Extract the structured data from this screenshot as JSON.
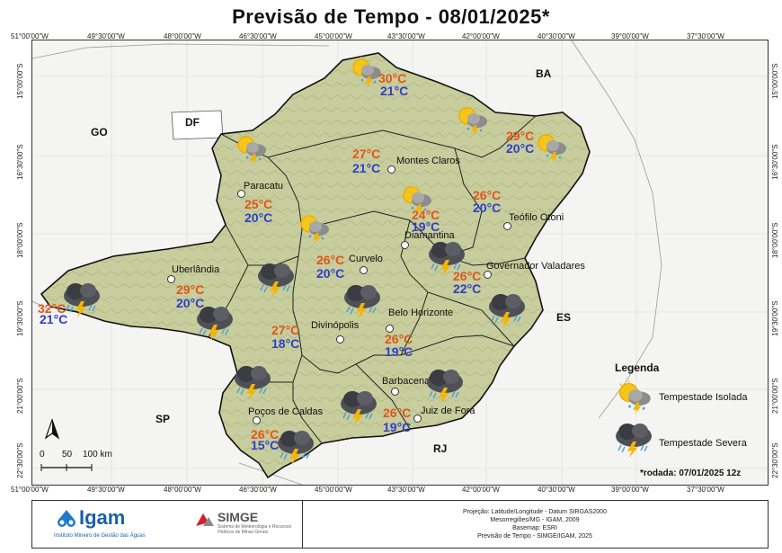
{
  "title": "Previsão de Tempo - 08/01/2025*",
  "coords_top": [
    "51°00'00\"W",
    "49°30'00\"W",
    "48°00'00\"W",
    "46°30'00\"W",
    "45°00'00\"W",
    "43°30'00\"W",
    "42°00'00\"W",
    "40°30'00\"W",
    "39°00'00\"W",
    "37°30'00\"W"
  ],
  "coords_side": [
    "15°00'00\"S",
    "16°30'00\"S",
    "18°00'00\"S",
    "19°30'00\"S",
    "21°00'00\"S",
    "22°30'00\"S"
  ],
  "states": [
    "GO",
    "DF",
    "BA",
    "ES",
    "SP",
    "RJ"
  ],
  "cities": [
    "Montes Claros",
    "Paracatu",
    "Teófilo Otoni",
    "Diamantina",
    "Uberlândia",
    "Curvelo",
    "Governador Valadares",
    "Divinópolis",
    "Belo Horizonte",
    "Barbacena",
    "Poços de Caldas",
    "Juiz de Fora"
  ],
  "forecasts": [
    {
      "max": "30°C",
      "min": "21°C",
      "icon": "tempestade-isolada"
    },
    {
      "max": "29°C",
      "min": "20°C",
      "icon": "tempestade-isolada"
    },
    {
      "max": "27°C",
      "min": "21°C",
      "icon": "tempestade-isolada"
    },
    {
      "max": "25°C",
      "min": "20°C",
      "icon": "tempestade-isolada"
    },
    {
      "max": "24°C",
      "min": "19°C",
      "icon": "tempestade-isolada"
    },
    {
      "max": "26°C",
      "min": "20°C",
      "icon": "tempestade-isolada"
    },
    {
      "max": "26°C",
      "min": "20°C",
      "icon": "tempestade-isolada"
    },
    {
      "max": "26°C",
      "min": "22°C",
      "icon": "tempestade-severa"
    },
    {
      "max": "29°C",
      "min": "20°C",
      "icon": "tempestade-severa"
    },
    {
      "max": "32°C",
      "min": "21°C",
      "icon": "tempestade-severa"
    },
    {
      "max": "27°C",
      "min": "18°C",
      "icon": "tempestade-severa"
    },
    {
      "max": "26°C",
      "min": "19°C",
      "icon": "tempestade-severa"
    },
    {
      "max": "26°C",
      "min": "19°C",
      "icon": "tempestade-severa"
    },
    {
      "max": "26°C",
      "min": "15°C",
      "icon": "tempestade-severa"
    }
  ],
  "legend": {
    "title": "Legenda",
    "isolada": "Tempestade Isolada",
    "severa": "Tempestade Severa"
  },
  "scale": {
    "labels": [
      "0",
      "50",
      "100 km"
    ]
  },
  "north": "N",
  "rodada": "*rodada: 07/01/2025 12z",
  "footer": {
    "igam": "Igam",
    "igam_sub": "Instituto Mineiro de Gestão das Águas",
    "simge": "SIMGE",
    "simge_sub": "Sistema de Meteorologia e Recursos Hídricos de Minas Gerais",
    "meta": [
      "Projeção: Latitude/Longitude - Datum SIRGAS2000",
      "Mesorregiões/MG - IGAM, 2009",
      "Basemap: ESRI",
      "Previsão de Tempo - SIMGE/IGAM, 2025"
    ]
  },
  "colors": {
    "max": "#e0561a",
    "min": "#2f3fc8",
    "terrain": "#c9cfa0",
    "outside": "#f4f4f2"
  }
}
